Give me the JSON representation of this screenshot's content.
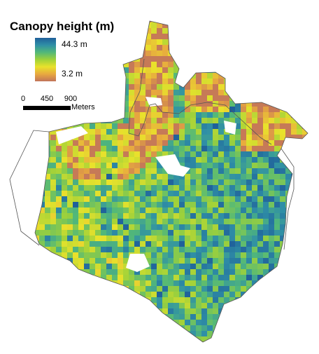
{
  "legend": {
    "title": "Canopy height (m)",
    "max_label": "44.3 m",
    "min_label": "3.2 m",
    "max_value": 44.3,
    "min_value": 3.2,
    "ramp_colors": [
      "#1f5f9a",
      "#2f8fa6",
      "#52b879",
      "#9ed13a",
      "#e9e22b",
      "#e8a93f",
      "#c1745a"
    ]
  },
  "scalebar": {
    "ticks": [
      "0",
      "450",
      "900"
    ],
    "tick_values": [
      0,
      450,
      900
    ],
    "units": "Meters"
  },
  "map": {
    "colors": {
      "outline": "#555555",
      "low": "#c1745a",
      "tall": "#1f5f9a"
    }
  }
}
